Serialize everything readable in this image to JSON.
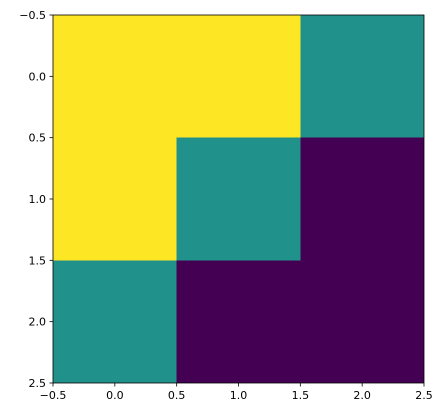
{
  "chart_data": {
    "type": "heatmap",
    "z": [
      [
        2,
        2,
        1
      ],
      [
        2,
        1,
        0
      ],
      [
        1,
        0,
        0
      ]
    ],
    "zlim": [
      0,
      2
    ],
    "colorscale": [
      "#440154",
      "#21918c",
      "#fde725"
    ],
    "xlim": [
      -0.5,
      2.5
    ],
    "ylim": [
      2.5,
      -0.5
    ],
    "xticks": [
      {
        "value": -0.5,
        "label": "−0.5"
      },
      {
        "value": 0,
        "label": "0.0"
      },
      0.5,
      {
        "value": 1,
        "label": "1.0"
      },
      1.5,
      {
        "value": 2,
        "label": "2.0"
      },
      2.5
    ],
    "yticks": [
      {
        "value": -0.5,
        "label": "−0.5"
      },
      {
        "value": 0,
        "label": "0.0"
      },
      0.5,
      {
        "value": 1,
        "label": "1.0"
      },
      1.5,
      {
        "value": 2,
        "label": "2.0"
      },
      2.5
    ]
  }
}
